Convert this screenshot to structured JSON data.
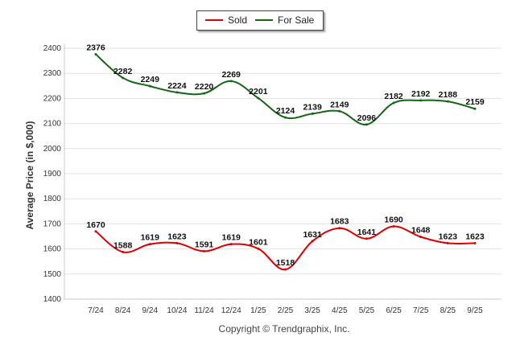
{
  "chart_data": {
    "type": "line",
    "title": "",
    "xlabel": "",
    "ylabel": "Average Price (in $,000)",
    "ylim": [
      1400,
      2400
    ],
    "yticks": [
      "2400",
      "2300",
      "2200",
      "2100",
      "2000",
      "1900",
      "1800",
      "1700",
      "1600",
      "1500",
      "1400"
    ],
    "categories": [
      "7/24",
      "8/24",
      "9/24",
      "10/24",
      "11/24",
      "12/24",
      "1/25",
      "2/25",
      "3/25",
      "4/25",
      "5/25",
      "6/25",
      "7/25",
      "8/25",
      "9/25"
    ],
    "series": [
      {
        "name": "Sold",
        "color": "#dd0000",
        "values": [
          1670,
          1588,
          1619,
          1623,
          1591,
          1619,
          1601,
          1518,
          1631,
          1683,
          1641,
          1690,
          1648,
          1623,
          1623
        ]
      },
      {
        "name": "For Sale",
        "color": "#116611",
        "values": [
          2376,
          2282,
          2249,
          2224,
          2220,
          2269,
          2201,
          2124,
          2139,
          2149,
          2096,
          2182,
          2192,
          2188,
          2159
        ]
      }
    ],
    "legend": {
      "position": "top-center"
    },
    "grid": true,
    "footer": "Copyright © Trendgraphix, Inc."
  }
}
